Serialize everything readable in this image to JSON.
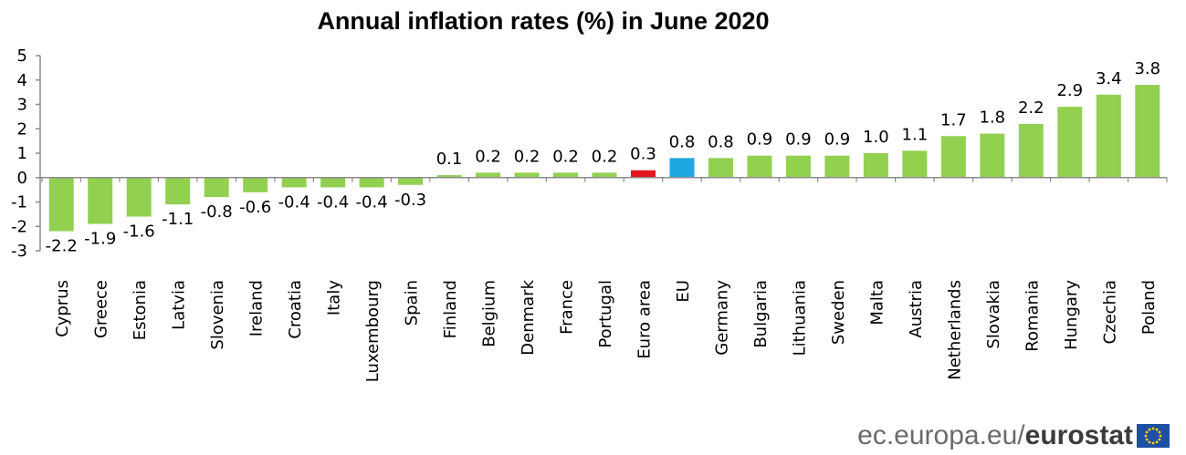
{
  "chart_data": {
    "type": "bar",
    "title": "Annual inflation rates (%) in June 2020",
    "xlabel": "",
    "ylabel": "",
    "ylim": [
      -3,
      5
    ],
    "yticks": [
      5,
      4,
      3,
      2,
      1,
      0,
      -1,
      -2,
      -3
    ],
    "ytick_labels": [
      "5",
      "4",
      "3",
      "2",
      "1",
      "0",
      "-1",
      "-2",
      "-3"
    ],
    "categories": [
      "Cyprus",
      "Greece",
      "Estonia",
      "Latvia",
      "Slovenia",
      "Ireland",
      "Croatia",
      "Italy",
      "Luxembourg",
      "Spain",
      "Finland",
      "Belgium",
      "Denmark",
      "France",
      "Portugal",
      "Euro area",
      "EU",
      "Germany",
      "Bulgaria",
      "Lithuania",
      "Sweden",
      "Malta",
      "Austria",
      "Netherlands",
      "Slovakia",
      "Romania",
      "Hungary",
      "Czechia",
      "Poland"
    ],
    "values": [
      -2.2,
      -1.9,
      -1.6,
      -1.1,
      -0.8,
      -0.6,
      -0.4,
      -0.4,
      -0.4,
      -0.3,
      0.1,
      0.2,
      0.2,
      0.2,
      0.2,
      0.3,
      0.8,
      0.8,
      0.9,
      0.9,
      0.9,
      1.0,
      1.1,
      1.7,
      1.8,
      2.2,
      2.9,
      3.4,
      3.8
    ],
    "data_labels": [
      "-2.2",
      "-1.9",
      "-1.6",
      "-1.1",
      "-0.8",
      "-0.6",
      "-0.4",
      "-0.4",
      "-0.4",
      "-0.3",
      "0.1",
      "0.2",
      "0.2",
      "0.2",
      "0.2",
      "0.3",
      "0.8",
      "0.8",
      "0.9",
      "0.9",
      "0.9",
      "1.0",
      "1.1",
      "1.7",
      "1.8",
      "2.2",
      "2.9",
      "3.4",
      "3.8"
    ],
    "highlights": {
      "Euro area": "#e2171f",
      "EU": "#1ea7e1"
    },
    "grid": false,
    "legend": "none",
    "bar_color": "#92d050"
  },
  "source": {
    "url": "ec.europa.eu/",
    "brand": "eurostat"
  },
  "colors": {
    "bar": "#92d050",
    "euro_area": "#e2171f",
    "eu": "#1ea7e1",
    "axis": "#8c8c8c",
    "flag_blue": "#1f4fa3",
    "flag_stars": "#ffd200"
  },
  "icons": {
    "flag": "eu-flag-icon"
  }
}
